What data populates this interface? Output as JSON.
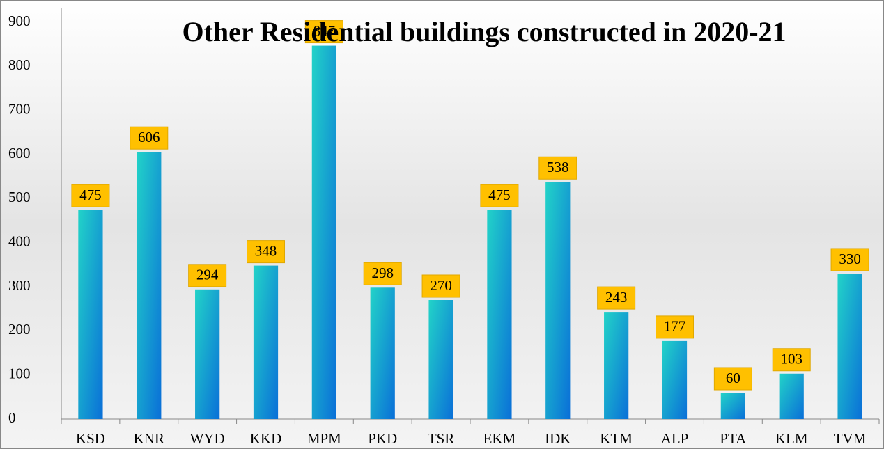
{
  "chart_data": {
    "type": "bar",
    "title": "Other Residential buildings constructed in 2020-21",
    "categories": [
      "KSD",
      "KNR",
      "WYD",
      "KKD",
      "MPM",
      "PKD",
      "TSR",
      "EKM",
      "IDK",
      "KTM",
      "ALP",
      "PTA",
      "KLM",
      "TVM"
    ],
    "values": [
      475,
      606,
      294,
      348,
      847,
      298,
      270,
      475,
      538,
      243,
      177,
      60,
      103,
      330
    ],
    "color": "#1a9be0",
    "ylim": [
      0,
      900
    ],
    "yticks": [
      0,
      100,
      200,
      300,
      400,
      500,
      600,
      700,
      800,
      900
    ],
    "grid": false
  }
}
